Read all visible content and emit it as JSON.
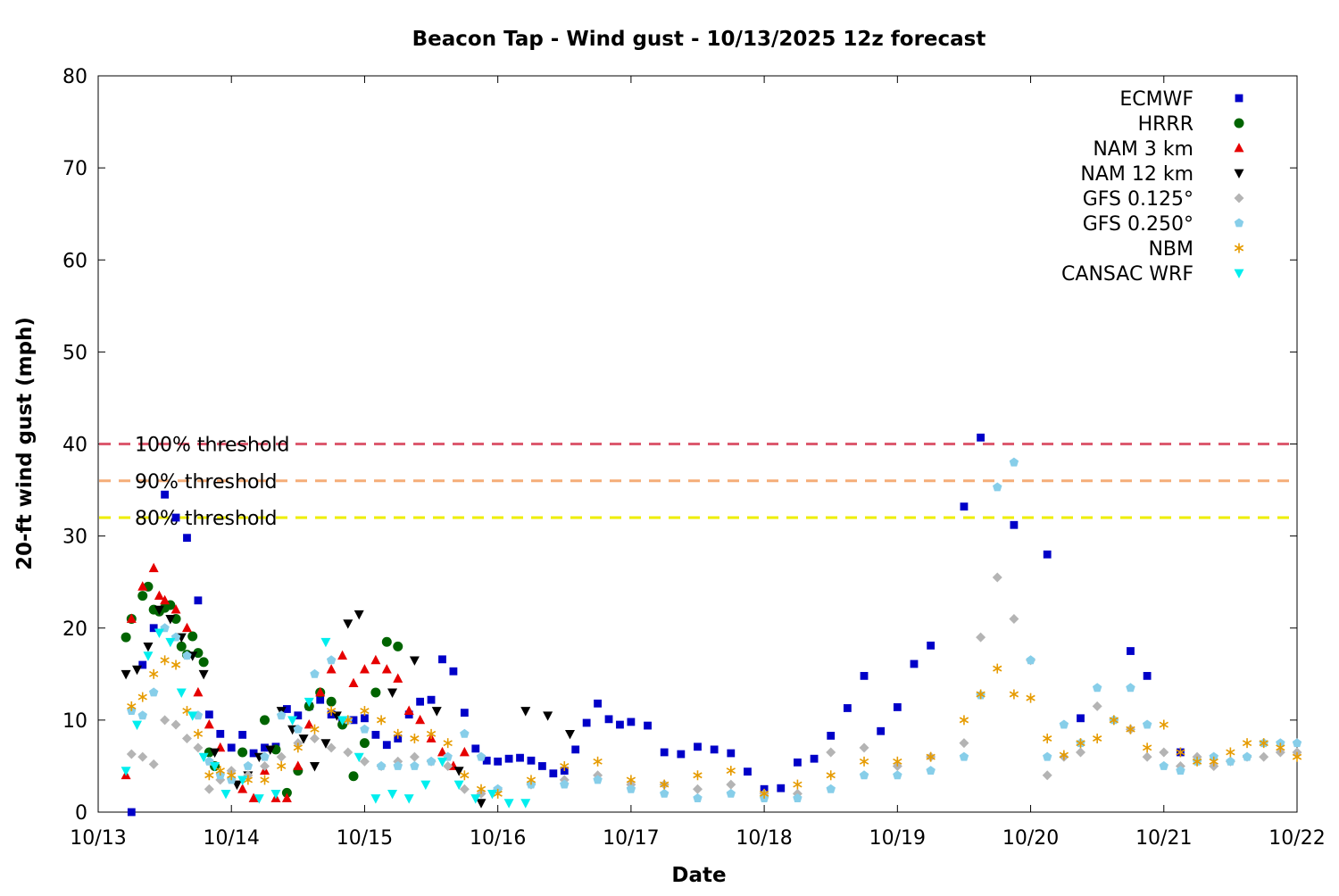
{
  "chart_data": {
    "type": "scatter",
    "title": "Beacon Tap - Wind gust - 10/13/2025 12z forecast",
    "xlabel": "Date",
    "ylabel": "20-ft wind gust (mph)",
    "x_ticks": [
      "10/13",
      "10/14",
      "10/15",
      "10/16",
      "10/17",
      "10/18",
      "10/19",
      "10/20",
      "10/21",
      "10/22"
    ],
    "y_ticks": [
      0,
      10,
      20,
      30,
      40,
      50,
      60,
      70,
      80
    ],
    "xlim": [
      "10/13 00:00",
      "10/22 00:00"
    ],
    "ylim": [
      0,
      80
    ],
    "grid": false,
    "legend_position": "top-right",
    "thresholds": [
      {
        "label": "100% threshold",
        "value": 40,
        "color": "#dc5a6e"
      },
      {
        "label": "90% threshold",
        "value": 36,
        "color": "#f5ad78"
      },
      {
        "label": "80% threshold",
        "value": 32,
        "color": "#eeee00"
      }
    ],
    "series": [
      {
        "name": "ECMWF",
        "marker": "square",
        "color": "#0000c8",
        "x": [
          "10/13 06:00",
          "10/13 08:00",
          "10/13 10:00",
          "10/13 12:00",
          "10/13 14:00",
          "10/13 16:00",
          "10/13 18:00",
          "10/13 20:00",
          "10/13 22:00",
          "10/14 00:00",
          "10/14 02:00",
          "10/14 04:00",
          "10/14 06:00",
          "10/14 08:00",
          "10/14 10:00",
          "10/14 12:00",
          "10/14 14:00",
          "10/14 16:00",
          "10/14 18:00",
          "10/14 20:00",
          "10/14 22:00",
          "10/15 00:00",
          "10/15 02:00",
          "10/15 04:00",
          "10/15 06:00",
          "10/15 08:00",
          "10/15 10:00",
          "10/15 12:00",
          "10/15 14:00",
          "10/15 16:00",
          "10/15 18:00",
          "10/15 20:00",
          "10/15 22:00",
          "10/16 00:00",
          "10/16 02:00",
          "10/16 04:00",
          "10/16 06:00",
          "10/16 08:00",
          "10/16 10:00",
          "10/16 12:00",
          "10/16 14:00",
          "10/16 16:00",
          "10/16 18:00",
          "10/16 20:00",
          "10/16 22:00",
          "10/17 00:00",
          "10/17 03:00",
          "10/17 06:00",
          "10/17 09:00",
          "10/17 12:00",
          "10/17 15:00",
          "10/17 18:00",
          "10/17 21:00",
          "10/18 00:00",
          "10/18 03:00",
          "10/18 06:00",
          "10/18 09:00",
          "10/18 12:00",
          "10/18 15:00",
          "10/18 18:00",
          "10/18 21:00",
          "10/19 00:00",
          "10/19 03:00",
          "10/19 06:00",
          "10/19 09:00",
          "10/19 12:00",
          "10/19 15:00",
          "10/19 18:00",
          "10/19 21:00",
          "10/20 00:00",
          "10/20 03:00",
          "10/20 06:00",
          "10/20 09:00",
          "10/20 12:00",
          "10/20 15:00",
          "10/20 18:00",
          "10/20 21:00",
          "10/21 00:00",
          "10/21 03:00",
          "10/21 06:00",
          "10/21 09:00",
          "10/21 12:00",
          "10/21 15:00",
          "10/21 18:00",
          "10/21 21:00",
          "10/22 00:00"
        ],
        "y": [
          0,
          16,
          20,
          34.5,
          32,
          29.8,
          23,
          10.6,
          8.5,
          7,
          8.4,
          6.4,
          7,
          7.1,
          11.2,
          10.5,
          11.5,
          12.2,
          10.6,
          9.8,
          10,
          10.2,
          8.4,
          7.3,
          8,
          10.6,
          12,
          12.2,
          16.6,
          15.3,
          10.8,
          6.9,
          5.6,
          5.5,
          5.8,
          5.9,
          5.6,
          5,
          4.2,
          4.5,
          6.8,
          9.7,
          11.8,
          10.1,
          9.5,
          9.8,
          9.4,
          6.5,
          6.3,
          7.1,
          6.8,
          6.4,
          4.4,
          2.5,
          2.6,
          5.4,
          5.8,
          8.3,
          11.3,
          14.8,
          8.8,
          11.4,
          16.1,
          18.1,
          null,
          33.2,
          40.7,
          null,
          31.2,
          null,
          28,
          null,
          10.2,
          null,
          null,
          17.5,
          14.8,
          null,
          6.5,
          null,
          null,
          null,
          null,
          null,
          null,
          null
        ]
      },
      {
        "name": "HRRR",
        "marker": "circle",
        "color": "#006400",
        "x": [
          "10/13 05:00",
          "10/13 06:00",
          "10/13 08:00",
          "10/13 09:00",
          "10/13 10:00",
          "10/13 11:00",
          "10/13 12:00",
          "10/13 13:00",
          "10/13 14:00",
          "10/13 15:00",
          "10/13 16:00",
          "10/13 17:00",
          "10/13 18:00",
          "10/13 19:00",
          "10/13 20:00",
          "10/13 21:00",
          "10/14 02:00",
          "10/14 06:00",
          "10/14 08:00",
          "10/14 10:00",
          "10/14 12:00",
          "10/14 14:00",
          "10/14 16:00",
          "10/14 18:00",
          "10/14 20:00",
          "10/14 22:00",
          "10/15 00:00",
          "10/15 02:00",
          "10/15 04:00",
          "10/15 06:00"
        ],
        "y": [
          19,
          21,
          23.5,
          24.5,
          22,
          21.8,
          22.2,
          22.5,
          21,
          18,
          17.1,
          19.1,
          17.3,
          16.3,
          6.5,
          5,
          6.5,
          10,
          6.8,
          2.1,
          4.5,
          11.5,
          13,
          12,
          9.5,
          3.9,
          7.5,
          13,
          18.5,
          18
        ]
      },
      {
        "name": "NAM 3 km",
        "marker": "triangle-up",
        "color": "#e60000",
        "x": [
          "10/13 05:00",
          "10/13 06:00",
          "10/13 08:00",
          "10/13 10:00",
          "10/13 11:00",
          "10/13 12:00",
          "10/13 14:00",
          "10/13 16:00",
          "10/13 18:00",
          "10/13 20:00",
          "10/13 22:00",
          "10/14 02:00",
          "10/14 04:00",
          "10/14 06:00",
          "10/14 08:00",
          "10/14 10:00",
          "10/14 12:00",
          "10/14 14:00",
          "10/14 16:00",
          "10/14 18:00",
          "10/14 20:00",
          "10/14 22:00",
          "10/15 00:00",
          "10/15 02:00",
          "10/15 04:00",
          "10/15 06:00",
          "10/15 08:00",
          "10/15 10:00",
          "10/15 12:00",
          "10/15 14:00",
          "10/15 16:00",
          "10/15 18:00"
        ],
        "y": [
          4,
          21,
          24.5,
          26.5,
          23.5,
          23,
          22,
          20,
          13,
          9.5,
          7,
          2.5,
          1.5,
          4.5,
          1.5,
          1.5,
          5,
          9.5,
          13,
          15.5,
          17,
          14,
          15.5,
          16.5,
          15.5,
          14.5,
          11,
          10,
          8,
          6.5,
          5,
          6.5
        ]
      },
      {
        "name": "NAM 12 km",
        "marker": "triangle-down",
        "color": "#000000",
        "x": [
          "10/13 05:00",
          "10/13 07:00",
          "10/13 09:00",
          "10/13 11:00",
          "10/13 13:00",
          "10/13 15:00",
          "10/13 17:00",
          "10/13 19:00",
          "10/13 21:00",
          "10/14 01:00",
          "10/14 03:00",
          "10/14 05:00",
          "10/14 07:00",
          "10/14 09:00",
          "10/14 11:00",
          "10/14 13:00",
          "10/14 15:00",
          "10/14 17:00",
          "10/14 19:00",
          "10/14 21:00",
          "10/14 23:00",
          "10/15 05:00",
          "10/15 09:00",
          "10/15 13:00",
          "10/15 17:00",
          "10/15 21:00",
          "10/16 05:00",
          "10/16 09:00",
          "10/16 13:00"
        ],
        "y": [
          15,
          15.5,
          18,
          22,
          21,
          19,
          17,
          15,
          6.5,
          3,
          4,
          6,
          6.8,
          11,
          9,
          8,
          5,
          7.5,
          10.5,
          20.5,
          21.5,
          13,
          16.5,
          11,
          4.5,
          1,
          11,
          10.5,
          8.5
        ]
      },
      {
        "name": "GFS 0.125°",
        "marker": "diamond",
        "color": "#b4b4b4",
        "x": [
          "10/13 06:00",
          "10/13 08:00",
          "10/13 10:00",
          "10/13 12:00",
          "10/13 14:00",
          "10/13 16:00",
          "10/13 18:00",
          "10/13 20:00",
          "10/13 22:00",
          "10/14 00:00",
          "10/14 03:00",
          "10/14 06:00",
          "10/14 09:00",
          "10/14 12:00",
          "10/14 15:00",
          "10/14 18:00",
          "10/14 21:00",
          "10/15 00:00",
          "10/15 03:00",
          "10/15 06:00",
          "10/15 09:00",
          "10/15 12:00",
          "10/15 15:00",
          "10/15 18:00",
          "10/15 21:00",
          "10/16 00:00",
          "10/16 06:00",
          "10/16 12:00",
          "10/16 18:00",
          "10/17 00:00",
          "10/17 06:00",
          "10/17 12:00",
          "10/17 18:00",
          "10/18 00:00",
          "10/18 06:00",
          "10/18 12:00",
          "10/18 18:00",
          "10/19 00:00",
          "10/19 06:00",
          "10/19 12:00",
          "10/19 15:00",
          "10/19 18:00",
          "10/19 21:00",
          "10/20 00:00",
          "10/20 03:00",
          "10/20 06:00",
          "10/20 09:00",
          "10/20 12:00",
          "10/20 15:00",
          "10/20 18:00",
          "10/20 21:00",
          "10/21 00:00",
          "10/21 03:00",
          "10/21 06:00",
          "10/21 09:00",
          "10/21 12:00",
          "10/21 15:00",
          "10/21 18:00",
          "10/21 21:00",
          "10/22 00:00"
        ],
        "y": [
          6.3,
          6,
          5.2,
          10,
          9.5,
          8,
          7,
          2.5,
          3.5,
          4.5,
          4,
          5,
          6,
          7.5,
          8,
          7,
          6.5,
          5.5,
          5,
          5.5,
          6,
          5.5,
          5,
          2.5,
          2,
          2.5,
          3,
          3.5,
          4,
          3,
          3,
          2.5,
          3,
          2,
          2,
          6.5,
          7,
          5,
          6,
          7.5,
          19,
          25.5,
          21,
          16.5,
          4,
          6,
          6.5,
          11.5,
          10,
          9,
          6,
          6.5,
          5,
          6,
          5,
          5.5,
          6,
          6,
          6.5,
          6.5
        ]
      },
      {
        "name": "GFS 0.250°",
        "marker": "pentagon",
        "color": "#87cee9",
        "x": [
          "10/13 06:00",
          "10/13 08:00",
          "10/13 10:00",
          "10/13 12:00",
          "10/13 14:00",
          "10/13 16:00",
          "10/13 18:00",
          "10/13 20:00",
          "10/13 22:00",
          "10/14 00:00",
          "10/14 03:00",
          "10/14 06:00",
          "10/14 09:00",
          "10/14 12:00",
          "10/14 15:00",
          "10/14 18:00",
          "10/14 21:00",
          "10/15 00:00",
          "10/15 03:00",
          "10/15 06:00",
          "10/15 09:00",
          "10/15 12:00",
          "10/15 15:00",
          "10/15 18:00",
          "10/15 21:00",
          "10/16 00:00",
          "10/16 06:00",
          "10/16 12:00",
          "10/16 18:00",
          "10/17 00:00",
          "10/17 06:00",
          "10/17 12:00",
          "10/17 18:00",
          "10/18 00:00",
          "10/18 06:00",
          "10/18 12:00",
          "10/18 18:00",
          "10/19 00:00",
          "10/19 06:00",
          "10/19 12:00",
          "10/19 15:00",
          "10/19 18:00",
          "10/19 21:00",
          "10/20 00:00",
          "10/20 03:00",
          "10/20 06:00",
          "10/20 09:00",
          "10/20 12:00",
          "10/20 15:00",
          "10/20 18:00",
          "10/20 21:00",
          "10/21 00:00",
          "10/21 03:00",
          "10/21 06:00",
          "10/21 09:00",
          "10/21 12:00",
          "10/21 15:00",
          "10/21 18:00",
          "10/21 21:00",
          "10/22 00:00"
        ],
        "y": [
          11,
          10.5,
          13,
          20,
          19,
          17,
          10.5,
          5.5,
          4,
          3.5,
          5,
          6,
          10.5,
          9,
          15,
          16.5,
          10,
          9,
          5,
          5,
          5,
          5.5,
          6,
          8.5,
          6,
          2.5,
          3,
          3,
          3.5,
          2.5,
          2,
          1.5,
          2,
          1.5,
          1.5,
          2.5,
          4,
          4,
          4.5,
          6,
          12.7,
          35.3,
          38,
          16.5,
          6,
          9.5,
          7.5,
          13.5,
          10,
          13.5,
          9.5,
          5,
          4.5,
          5.5,
          6,
          5.5,
          6,
          7.5,
          7.5,
          7.5
        ]
      },
      {
        "name": "NBM",
        "marker": "asterisk",
        "color": "#e69b00",
        "x": [
          "10/13 06:00",
          "10/13 08:00",
          "10/13 10:00",
          "10/13 12:00",
          "10/13 14:00",
          "10/13 16:00",
          "10/13 18:00",
          "10/13 20:00",
          "10/13 22:00",
          "10/14 00:00",
          "10/14 03:00",
          "10/14 06:00",
          "10/14 09:00",
          "10/14 12:00",
          "10/14 15:00",
          "10/14 18:00",
          "10/14 21:00",
          "10/15 00:00",
          "10/15 03:00",
          "10/15 06:00",
          "10/15 09:00",
          "10/15 12:00",
          "10/15 15:00",
          "10/15 18:00",
          "10/15 21:00",
          "10/16 00:00",
          "10/16 06:00",
          "10/16 12:00",
          "10/16 18:00",
          "10/17 00:00",
          "10/17 06:00",
          "10/17 12:00",
          "10/17 18:00",
          "10/18 00:00",
          "10/18 06:00",
          "10/18 12:00",
          "10/18 18:00",
          "10/19 00:00",
          "10/19 06:00",
          "10/19 12:00",
          "10/19 15:00",
          "10/19 18:00",
          "10/19 21:00",
          "10/20 00:00",
          "10/20 03:00",
          "10/20 06:00",
          "10/20 09:00",
          "10/20 12:00",
          "10/20 15:00",
          "10/20 18:00",
          "10/20 21:00",
          "10/21 00:00",
          "10/21 03:00",
          "10/21 06:00",
          "10/21 09:00",
          "10/21 12:00",
          "10/21 15:00",
          "10/21 18:00",
          "10/21 21:00",
          "10/22 00:00"
        ],
        "y": [
          11.5,
          12.5,
          15,
          16.5,
          16,
          11,
          8.5,
          4,
          4.5,
          4,
          3.5,
          3.5,
          5,
          7,
          9,
          11,
          10,
          11,
          10,
          8.5,
          8,
          8.5,
          7.5,
          4,
          2.5,
          2,
          3.5,
          5,
          5.5,
          3.5,
          3,
          4,
          4.5,
          2,
          3,
          4,
          5.5,
          5.5,
          6,
          10,
          12.8,
          15.6,
          12.8,
          12.4,
          8,
          6.2,
          7.5,
          8,
          10,
          9,
          7,
          9.5,
          6.5,
          5.5,
          5.5,
          6.5,
          7.5,
          7.5,
          7,
          6
        ]
      },
      {
        "name": "CANSAC WRF",
        "marker": "triangle-down",
        "color": "#00eeee",
        "x": [
          "10/13 05:00",
          "10/13 07:00",
          "10/13 09:00",
          "10/13 11:00",
          "10/13 13:00",
          "10/13 15:00",
          "10/13 17:00",
          "10/13 19:00",
          "10/13 21:00",
          "10/13 23:00",
          "10/14 02:00",
          "10/14 05:00",
          "10/14 08:00",
          "10/14 11:00",
          "10/14 14:00",
          "10/14 17:00",
          "10/14 20:00",
          "10/14 23:00",
          "10/15 02:00",
          "10/15 05:00",
          "10/15 08:00",
          "10/15 11:00",
          "10/15 14:00",
          "10/15 17:00",
          "10/15 20:00",
          "10/15 23:00",
          "10/16 02:00",
          "10/16 05:00"
        ],
        "y": [
          4.5,
          9.5,
          17,
          19.5,
          18.5,
          13,
          10.5,
          6,
          5,
          2,
          3.5,
          1.5,
          2,
          10,
          12,
          18.5,
          10,
          6,
          1.5,
          2,
          1.5,
          3,
          5.5,
          3,
          1.5,
          2,
          1,
          1
        ]
      }
    ]
  }
}
